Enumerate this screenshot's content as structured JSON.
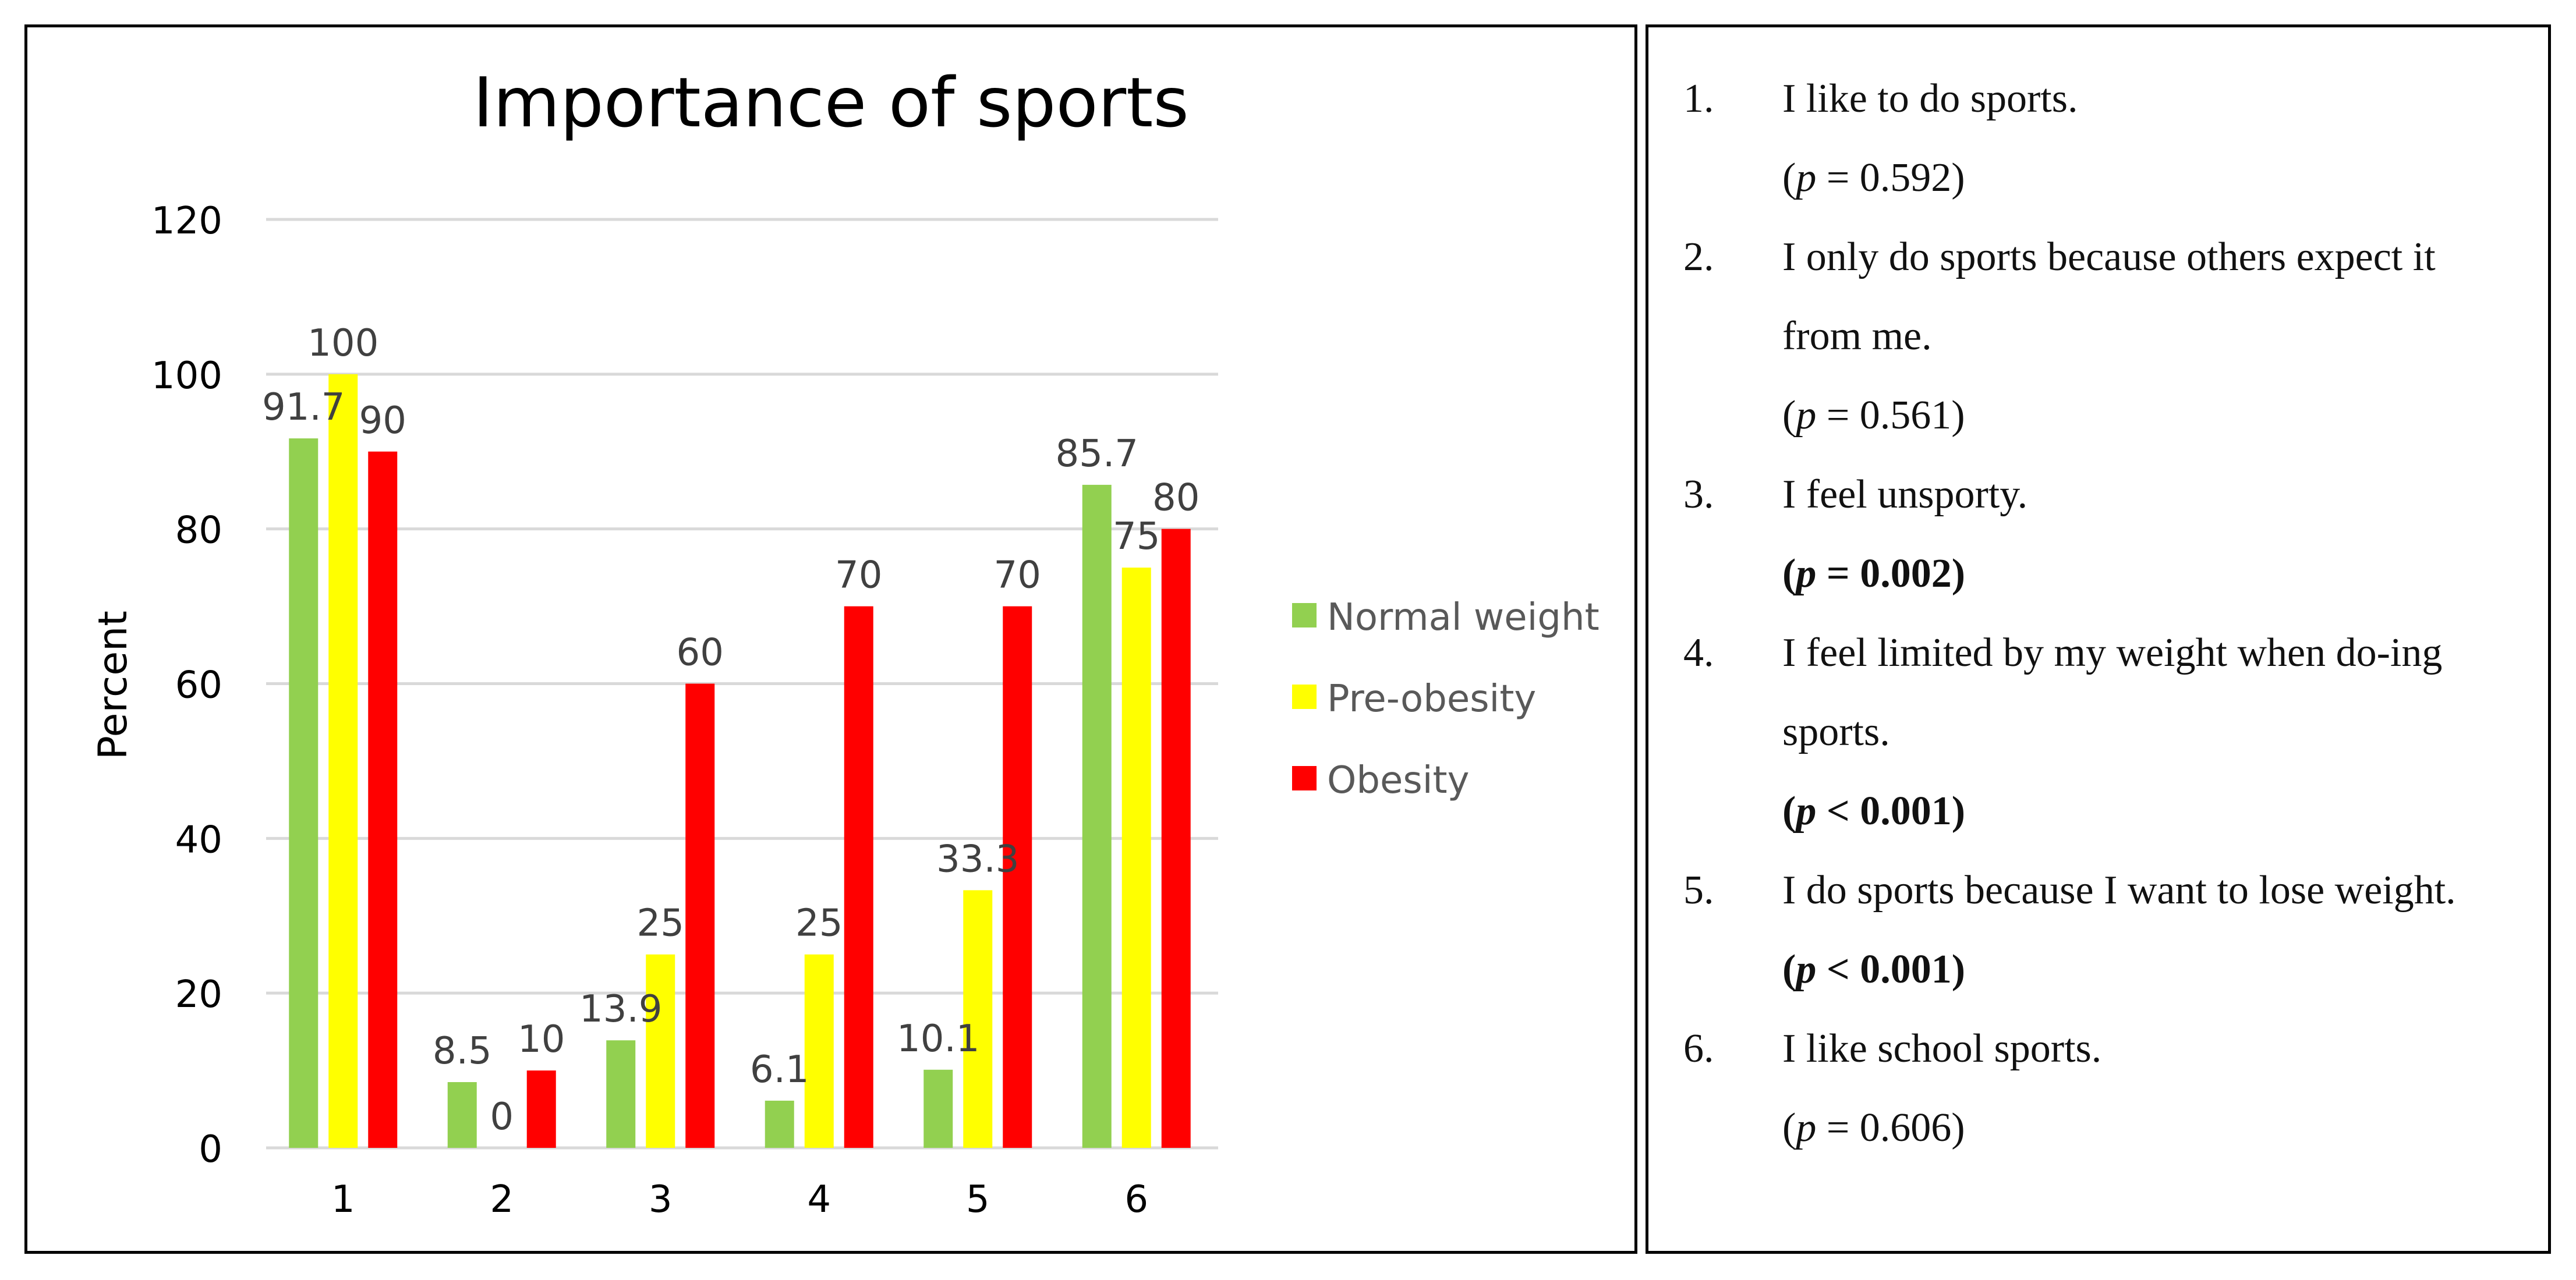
{
  "chart_data": {
    "type": "bar",
    "title": "Importance of sports",
    "xlabel": "",
    "ylabel": "Percent",
    "ylim": [
      0,
      120
    ],
    "yticks": [
      0,
      20,
      40,
      60,
      80,
      100,
      120
    ],
    "grid": true,
    "legend_position": "right",
    "categories": [
      "1",
      "2",
      "3",
      "4",
      "5",
      "6"
    ],
    "series": [
      {
        "name": "Normal weight",
        "color": "#92D050",
        "values": [
          91.7,
          8.5,
          13.9,
          6.1,
          10.1,
          85.7
        ]
      },
      {
        "name": "Pre-obesity",
        "color": "#FFFF00",
        "values": [
          100,
          0,
          25,
          25,
          33.3,
          75
        ]
      },
      {
        "name": "Obesity",
        "color": "#FF0000",
        "values": [
          90,
          10,
          60,
          70,
          70,
          80
        ]
      }
    ]
  },
  "items": [
    {
      "num": "1.",
      "text": "I like to do sports.",
      "p_italic": "p",
      "p_rest": " = 0.592)",
      "p_open": "(",
      "bold": false
    },
    {
      "num": "2.",
      "text": "I only do sports because others expect it from me.",
      "p_italic": "p",
      "p_rest": " = 0.561)",
      "p_open": "(",
      "bold": false
    },
    {
      "num": "3.",
      "text": "I feel unsporty.",
      "p_italic": "p",
      "p_rest": " = 0.002)",
      "p_open": "(",
      "bold": true
    },
    {
      "num": "4.",
      "text": "I feel limited by my weight when do-ing sports.",
      "p_italic": "p",
      "p_rest": " < 0.001)",
      "p_open": "(",
      "bold": true
    },
    {
      "num": "5.",
      "text": "I do sports because I want to lose weight.",
      "p_italic": "p",
      "p_rest": " < 0.001)",
      "p_open": "(",
      "bold": true
    },
    {
      "num": "6.",
      "text": "I like school sports.",
      "p_italic": "p",
      "p_rest": " = 0.606)",
      "p_open": "(",
      "bold": false
    }
  ]
}
